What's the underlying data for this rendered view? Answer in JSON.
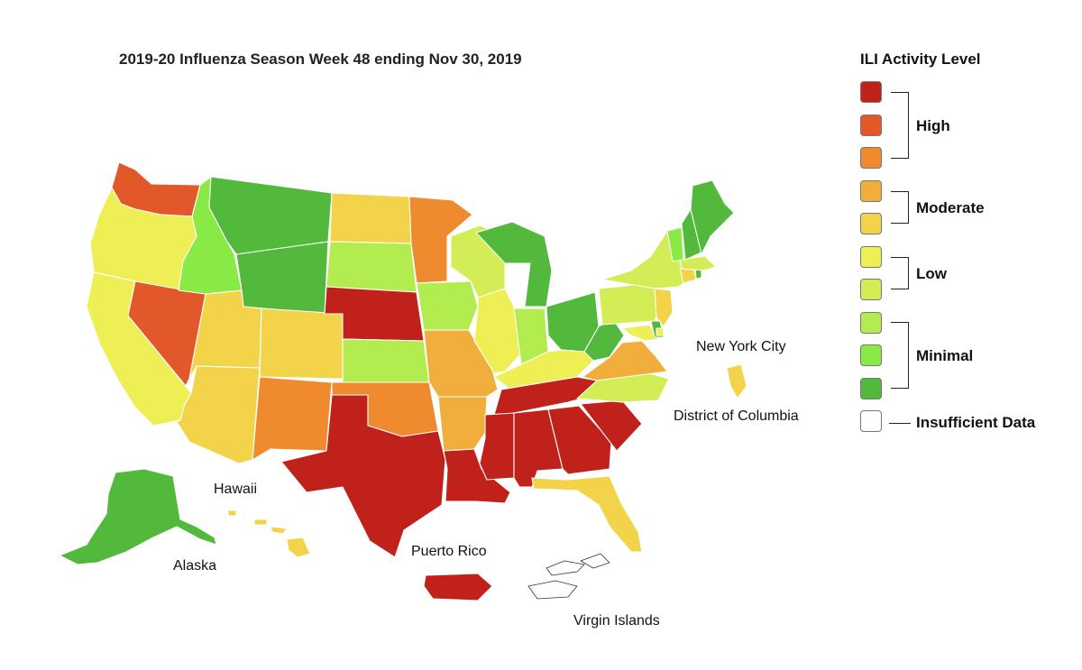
{
  "title": "2019-20 Influenza Season Week 48 ending Nov 30, 2019",
  "legend": {
    "title": "ILI Activity Level",
    "levels": [
      {
        "level": 10,
        "color": "#c0211a"
      },
      {
        "level": 9,
        "color": "#e3582a"
      },
      {
        "level": 8,
        "color": "#ef8a2f"
      },
      {
        "level": 7,
        "color": "#f2ae3d"
      },
      {
        "level": 6,
        "color": "#f3d34a"
      },
      {
        "level": 5,
        "color": "#eeee55"
      },
      {
        "level": 4,
        "color": "#d2ed55"
      },
      {
        "level": 3,
        "color": "#b3ec4e"
      },
      {
        "level": 2,
        "color": "#8aea45"
      },
      {
        "level": 1,
        "color": "#52b93c"
      }
    ],
    "groups": [
      {
        "label": "High"
      },
      {
        "label": "Moderate"
      },
      {
        "label": "Low"
      },
      {
        "label": "Minimal"
      }
    ],
    "insufficient_label": "Insufficient Data",
    "insufficient_color": "#ffffff"
  },
  "labels": {
    "new_york_city": "New York City",
    "district_of_columbia": "District of Columbia",
    "hawaii": "Hawaii",
    "alaska": "Alaska",
    "puerto_rico": "Puerto Rico",
    "virgin_islands": "Virgin Islands"
  },
  "state_levels": {
    "Washington": 9,
    "Oregon": 5,
    "California": 5,
    "Nevada": 9,
    "Idaho": 2,
    "Montana": 1,
    "Wyoming": 1,
    "Utah": 6,
    "Arizona": 6,
    "Colorado": 6,
    "New Mexico": 8,
    "North Dakota": 6,
    "South Dakota": 3,
    "Nebraska": 10,
    "Kansas": 3,
    "Oklahoma": 8,
    "Texas": 10,
    "Minnesota": 8,
    "Iowa": 3,
    "Missouri": 7,
    "Arkansas": 7,
    "Louisiana": 10,
    "Wisconsin": 4,
    "Illinois": 5,
    "Michigan": 1,
    "Indiana": 3,
    "Ohio": 1,
    "Kentucky": 5,
    "Tennessee": 10,
    "Mississippi": 10,
    "Alabama": 10,
    "Georgia": 10,
    "Florida": 6,
    "South Carolina": 10,
    "North Carolina": 4,
    "Virginia": 7,
    "West Virginia": 1,
    "Maryland": 5,
    "Delaware": 1,
    "Pennsylvania": 4,
    "New Jersey": 6,
    "New York": 4,
    "Connecticut": 6,
    "Rhode Island": 1,
    "Massachusetts": 4,
    "Vermont": 2,
    "New Hampshire": 1,
    "Maine": 1,
    "Alaska": 1,
    "Hawaii": 6,
    "New York City": 6,
    "District of Columbia": 5,
    "Puerto Rico": 10,
    "Virgin Islands": 0
  }
}
